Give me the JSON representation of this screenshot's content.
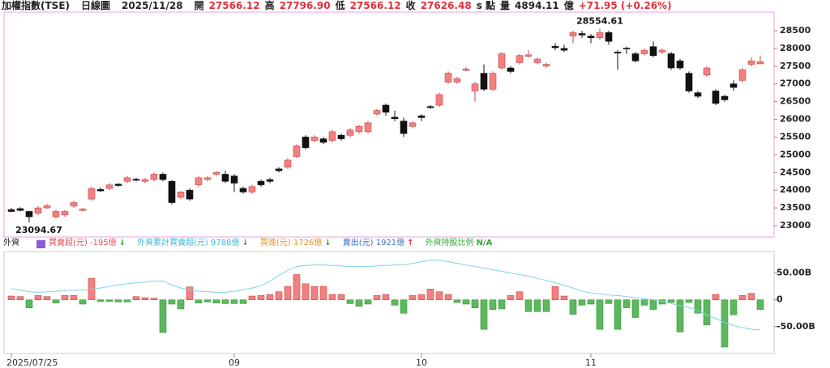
{
  "header": [
    {
      "text": "加權指數(TSE)",
      "color": "#222222"
    },
    {
      "text": "日線圖",
      "color": "#222222"
    },
    {
      "text": "2025/11/28",
      "color": "#222222"
    },
    {
      "text": "開",
      "color": "#222222"
    },
    {
      "text": "27566.12",
      "color": "#e0303a"
    },
    {
      "text": "高",
      "color": "#222222"
    },
    {
      "text": "27796.90",
      "color": "#e0303a"
    },
    {
      "text": "低",
      "color": "#222222"
    },
    {
      "text": "27566.12",
      "color": "#e0303a"
    },
    {
      "text": "收",
      "color": "#222222"
    },
    {
      "text": "27626.48",
      "color": "#e0303a"
    },
    {
      "text": "s 點",
      "color": "#222222"
    },
    {
      "text": "量",
      "color": "#222222"
    },
    {
      "text": "4894.11",
      "color": "#222222"
    },
    {
      "text": "億",
      "color": "#222222"
    },
    {
      "text": "+71.95 (+0.26%)",
      "color": "#e0303a"
    }
  ],
  "legend_title": "外資",
  "legend": [
    {
      "text": "買賣超(元) -195億",
      "arrow": "↓",
      "color": "#e05050",
      "arrow_color": "#2a9d2a"
    },
    {
      "text": "外資累計買賣超(元) 9788億",
      "arrow": "↓",
      "color": "#3fb6d6",
      "arrow_color": "#2a9d2a"
    },
    {
      "text": "買進(元) 1726億",
      "arrow": "↓",
      "color": "#e8902a",
      "arrow_color": "#2a9d2a"
    },
    {
      "text": "賣出(元) 1921億",
      "arrow": "↑",
      "color": "#3a6fc4",
      "arrow_color": "#e0303a"
    },
    {
      "text": "外資持股比例",
      "arrow": "N/A",
      "color": "#3aa63a",
      "arrow_color": "#3aa63a"
    }
  ],
  "chart_data": [
    {
      "type": "candlestick",
      "up_color": "#f28080",
      "down_color": "#111111",
      "categories": [
        "2025/07/25",
        null,
        null,
        null,
        null,
        null,
        null,
        null,
        null,
        null,
        null,
        null,
        null,
        null,
        null,
        null,
        null,
        null,
        null,
        null,
        null,
        null,
        null,
        null,
        null,
        "09",
        null,
        null,
        null,
        null,
        null,
        null,
        null,
        null,
        null,
        null,
        null,
        null,
        null,
        null,
        null,
        null,
        null,
        null,
        null,
        null,
        "10",
        null,
        null,
        null,
        null,
        null,
        null,
        null,
        null,
        null,
        null,
        null,
        null,
        null,
        null,
        null,
        null,
        null,
        null,
        "11",
        null,
        null,
        null,
        null,
        null,
        null,
        null,
        null,
        null,
        null,
        null,
        null,
        null,
        null,
        null,
        null,
        null,
        null,
        null
      ],
      "open": [
        23450,
        23480,
        23400,
        23350,
        23500,
        23250,
        23300,
        23550,
        23430,
        23750,
        24020,
        24050,
        24170,
        24250,
        24310,
        24250,
        24300,
        24450,
        24250,
        23800,
        24000,
        24150,
        24300,
        24450,
        24450,
        24400,
        24050,
        23950,
        24250,
        24300,
        24600,
        24650,
        24950,
        25500,
        25400,
        25450,
        25400,
        25550,
        25550,
        25650,
        25650,
        26150,
        26400,
        26060,
        25950,
        25800,
        26100,
        26360,
        26400,
        27050,
        27050,
        27380,
        26800,
        27300,
        26850,
        27450,
        27450,
        27600,
        27780,
        27600,
        27500,
        28060,
        28000,
        28350,
        28420,
        28350,
        28300,
        28450,
        27900,
        28010,
        27850,
        27850,
        28050,
        27900,
        27850,
        27650,
        27300,
        26750,
        27250,
        26800,
        26650,
        27000,
        27100,
        27550,
        27566.12
      ],
      "high": [
        23500,
        23520,
        23420,
        23550,
        23620,
        23450,
        23440,
        23700,
        23500,
        24100,
        24080,
        24200,
        24200,
        24400,
        24350,
        24350,
        24500,
        24500,
        24280,
        23980,
        24050,
        24400,
        24400,
        24550,
        24550,
        24450,
        24100,
        24150,
        24300,
        24350,
        24650,
        24900,
        25300,
        25550,
        25550,
        25500,
        25700,
        25600,
        25750,
        25850,
        25950,
        26300,
        26450,
        26250,
        26050,
        25950,
        26150,
        26400,
        26750,
        27350,
        27200,
        27480,
        27050,
        27550,
        27350,
        27900,
        27500,
        27850,
        27950,
        27750,
        27600,
        28150,
        28100,
        28500,
        28500,
        28400,
        28554.61,
        28500,
        27950,
        28050,
        27900,
        28000,
        28200,
        28000,
        27900,
        27700,
        27350,
        26800,
        27500,
        26850,
        26700,
        27100,
        27450,
        27750,
        27796.9
      ],
      "low": [
        23380,
        23400,
        23094.67,
        23300,
        23480,
        23200,
        23250,
        23500,
        23400,
        23700,
        23950,
        24000,
        24100,
        24200,
        24250,
        24200,
        24250,
        24250,
        23600,
        23750,
        23700,
        24100,
        24250,
        24400,
        24200,
        23950,
        23900,
        23900,
        24100,
        24200,
        24500,
        24600,
        24900,
        25150,
        25350,
        25300,
        25350,
        25400,
        25500,
        25600,
        25600,
        26100,
        26100,
        25950,
        25500,
        25750,
        25950,
        26300,
        26350,
        27000,
        27000,
        27350,
        26500,
        26800,
        26800,
        27400,
        27300,
        27550,
        27750,
        27550,
        27450,
        27950,
        27900,
        28150,
        28300,
        28150,
        28250,
        28100,
        27400,
        27850,
        27600,
        27800,
        27750,
        27850,
        27400,
        27400,
        26750,
        26600,
        27200,
        26400,
        26500,
        26800,
        27050,
        27500,
        27566.12
      ],
      "close": [
        23400,
        23430,
        23250,
        23500,
        23560,
        23400,
        23400,
        23650,
        23470,
        24050,
        23980,
        24150,
        24130,
        24350,
        24280,
        24300,
        24450,
        24300,
        23650,
        23950,
        23750,
        24350,
        24350,
        24500,
        24250,
        24200,
        23950,
        24100,
        24150,
        24250,
        24550,
        24850,
        25250,
        25200,
        25500,
        25350,
        25650,
        25450,
        25700,
        25800,
        25900,
        26250,
        26200,
        26020,
        25600,
        25900,
        26050,
        26330,
        26700,
        27300,
        27150,
        27420,
        27000,
        26850,
        27300,
        27850,
        27350,
        27800,
        27820,
        27700,
        27550,
        28020,
        27950,
        28450,
        28380,
        28300,
        28450,
        28200,
        27870,
        27990,
        27650,
        27950,
        27800,
        27950,
        27450,
        27450,
        26800,
        26650,
        27450,
        26450,
        26550,
        26900,
        27400,
        27650,
        27626.48
      ],
      "annotations": [
        {
          "index": 66,
          "path": "high"
        },
        {
          "index": 2,
          "path": "low"
        }
      ],
      "ylim": [
        22680,
        29025
      ],
      "yticks": [
        23000,
        23500,
        24000,
        24500,
        25000,
        25500,
        26000,
        26500,
        27000,
        27500,
        28000,
        28500
      ]
    },
    {
      "type": "bar",
      "series": [
        {
          "type": "bar",
          "up_color": "#f28080",
          "down_color": "#5cb85c",
          "values": [
            7,
            6,
            -15,
            8,
            6,
            -6,
            8,
            8,
            -8,
            40,
            -3,
            -3,
            -4,
            -4,
            6,
            4,
            3,
            -61,
            -8,
            -17,
            24,
            -6,
            -4,
            -6,
            -7,
            -7,
            -7,
            7,
            8,
            10,
            15,
            25,
            47,
            30,
            25,
            25,
            10,
            10,
            -7,
            -12,
            -8,
            8,
            10,
            -10,
            -25,
            8,
            10,
            20,
            15,
            10,
            -5,
            -8,
            -15,
            -55,
            -18,
            -17,
            8,
            15,
            -22,
            -22,
            -22,
            25,
            7,
            -27,
            -10,
            -8,
            -55,
            -7,
            -55,
            -15,
            -33,
            -10,
            -18,
            -8,
            -5,
            -60,
            -5,
            -25,
            -47,
            10,
            -88,
            -28,
            8,
            12,
            -18
          ]
        },
        {
          "type": "line",
          "color": "#7fd3ea",
          "values": [
            21,
            18,
            15,
            14,
            15,
            16,
            17,
            18,
            18,
            20,
            22,
            25,
            28,
            30,
            32,
            33,
            35,
            35,
            28,
            22,
            18,
            16,
            15,
            14,
            14,
            16,
            19,
            22,
            26,
            35,
            45,
            55,
            62,
            64,
            65,
            65,
            64,
            63,
            62,
            62,
            62,
            63,
            64,
            65,
            65,
            68,
            71,
            74,
            74,
            71,
            68,
            65,
            62,
            59,
            56,
            53,
            50,
            47,
            44,
            40,
            36,
            32,
            27,
            22,
            16,
            13,
            11,
            9,
            8,
            6,
            4,
            2,
            0,
            -3,
            -7,
            -11,
            -14,
            -20,
            -28,
            -35,
            -42,
            -48,
            -52,
            -55,
            -56
          ]
        }
      ],
      "ylim": [
        -100,
        90
      ],
      "yticks": [
        {
          "value": 50,
          "label": "50.00B"
        },
        0,
        {
          "value": -50,
          "label": "-50.00B"
        }
      ]
    }
  ]
}
